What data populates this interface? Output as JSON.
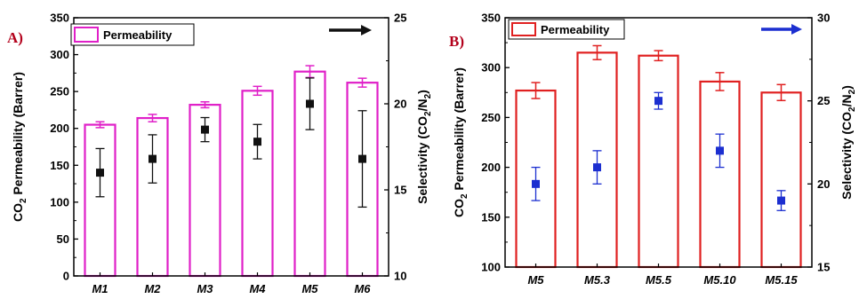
{
  "chart_data": [
    {
      "type": "bar",
      "panel_label": "A)",
      "categories": [
        "M1",
        "M2",
        "M3",
        "M4",
        "M5",
        "M6"
      ],
      "series": [
        {
          "name": "Permeability",
          "axis": "left",
          "kind": "bar",
          "values": [
            205,
            214,
            232,
            251,
            277,
            262
          ],
          "errors": [
            4,
            5,
            4,
            6,
            8,
            6
          ]
        },
        {
          "axis": "right",
          "kind": "scatter",
          "values": [
            16.0,
            16.8,
            18.5,
            17.8,
            20.0,
            16.8
          ],
          "errors": [
            1.4,
            1.4,
            0.7,
            1.0,
            1.5,
            2.8
          ]
        }
      ],
      "ylabel_left": "CO₂ Permeability (Barrer)",
      "ylabel_right": "Selectivity (CO₂/N₂)",
      "ylim_left": [
        0,
        350
      ],
      "ylim_right": [
        10,
        25
      ],
      "yticks_left": [
        "0",
        "50",
        "100",
        "150",
        "200",
        "250",
        "300",
        "350"
      ],
      "yticks_right": [
        "10",
        "15",
        "20",
        "25"
      ],
      "legend": "top-left",
      "arrow_direction": "right",
      "colors": {
        "bar": "#e020c8",
        "marker": "#111111",
        "arrow": "#111111",
        "label": "#b3001b"
      }
    },
    {
      "type": "bar",
      "panel_label": "B)",
      "categories": [
        "M5",
        "M5.3",
        "M5.5",
        "M5.10",
        "M5.15"
      ],
      "series": [
        {
          "name": "Permeability",
          "axis": "left",
          "kind": "bar",
          "values": [
            277,
            315,
            312,
            286,
            275
          ],
          "errors": [
            8,
            7,
            5,
            9,
            8
          ]
        },
        {
          "axis": "right",
          "kind": "scatter",
          "values": [
            20.0,
            21.0,
            25.0,
            22.0,
            19.0
          ],
          "errors": [
            1.0,
            1.0,
            0.5,
            1.0,
            0.6
          ]
        }
      ],
      "ylabel_left": "CO₂ Permeability (Barrer)",
      "ylabel_right": "Selectivity (CO₂/N₂)",
      "ylim_left": [
        100,
        350
      ],
      "ylim_right": [
        15,
        30
      ],
      "yticks_left": [
        "100",
        "150",
        "200",
        "250",
        "300",
        "350"
      ],
      "yticks_right": [
        "15",
        "20",
        "25",
        "30"
      ],
      "legend": "top-left",
      "arrow_direction": "right",
      "colors": {
        "bar": "#e02020",
        "marker": "#1c2fd0",
        "arrow": "#1c2fd0",
        "label": "#b3001b"
      }
    }
  ]
}
